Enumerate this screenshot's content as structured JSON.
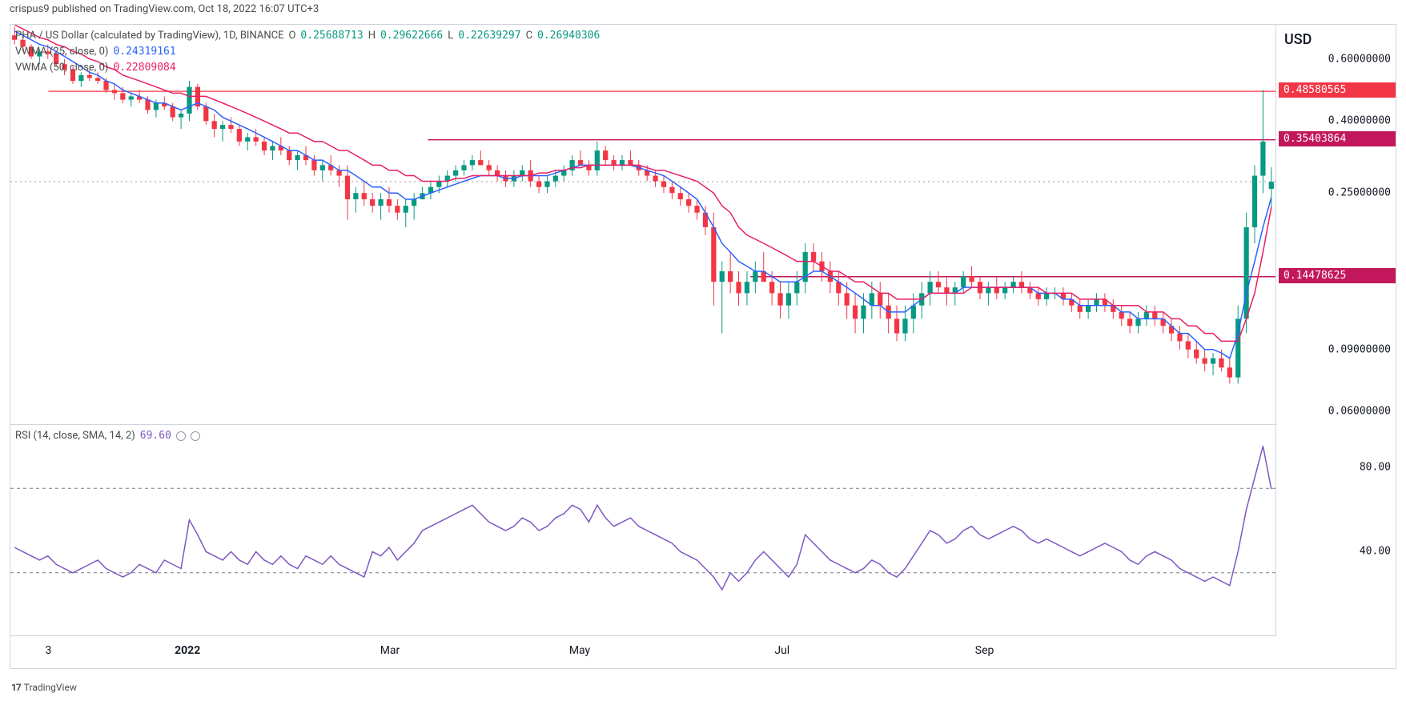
{
  "header": {
    "publisher": "crispus9",
    "site": "TradingView.com",
    "date": "Oct 18, 2022 16:07 UTC+3"
  },
  "symbol_legend": {
    "symbol": "PHA / US Dollar (calculated by TradingView), 1D, BINANCE",
    "O": "0.25688713",
    "H": "0.29622666",
    "L": "0.22639297",
    "C": "0.26940306",
    "ohlc_color": "#089981"
  },
  "vwma25": {
    "label": "VWMA (25, close, 0)",
    "value": "0.24319161",
    "color": "#2962ff"
  },
  "vwma50": {
    "label": "VWMA (50, close, 0)",
    "value": "0.22809084",
    "color": "#e91e63"
  },
  "rsi_legend": {
    "label": "RSI (14, close, SMA, 14, 2)",
    "value": "69.60",
    "color": "#7e57c2"
  },
  "yaxis": {
    "label": "USD",
    "scale": "log",
    "ticks": [
      {
        "v": 0.6,
        "label": "0.60000000"
      },
      {
        "v": 0.4,
        "label": "0.40000000"
      },
      {
        "v": 0.25,
        "label": "0.25000000"
      },
      {
        "v": 0.09,
        "label": "0.09000000"
      },
      {
        "v": 0.06,
        "label": "0.06000000"
      }
    ]
  },
  "price_lines": [
    {
      "v": 0.48580565,
      "label": "0.48580565",
      "bg": "#f23645",
      "line": "#f7525f",
      "x0pct": 3
    },
    {
      "v": 0.35403864,
      "label": "0.35403864",
      "bg": "#c2185b",
      "line": "#c2185b",
      "x0pct": 33
    },
    {
      "v": 0.14478625,
      "label": "0.14478625",
      "bg": "#c2185b",
      "line": "#c2185b",
      "x0pct": 58.5
    }
  ],
  "current_price_line": {
    "v": 0.2694,
    "color": "#9598a1"
  },
  "rsi_yaxis": {
    "ticks": [
      80,
      40
    ],
    "bands": [
      70,
      30
    ],
    "band_color": "#787b86"
  },
  "xaxis": {
    "ticks": [
      {
        "pct": 3,
        "label": "3",
        "bold": false
      },
      {
        "pct": 14,
        "label": "2022",
        "bold": true
      },
      {
        "pct": 30,
        "label": "Mar",
        "bold": false
      },
      {
        "pct": 45,
        "label": "May",
        "bold": false
      },
      {
        "pct": 61,
        "label": "Jul",
        "bold": false
      },
      {
        "pct": 77,
        "label": "Sep",
        "bold": false
      }
    ]
  },
  "footer": {
    "logo": "17",
    "text": "TradingView"
  },
  "colors": {
    "up": "#089981",
    "down": "#f23645",
    "grid": "#e0e3eb",
    "rsi_line": "#7e57c2",
    "background": "#ffffff"
  },
  "chart": {
    "y_domain_log": [
      0.055,
      0.75
    ],
    "candles": [
      [
        0.7,
        0.74,
        0.66,
        0.68
      ],
      [
        0.68,
        0.7,
        0.63,
        0.65
      ],
      [
        0.65,
        0.66,
        0.6,
        0.61
      ],
      [
        0.61,
        0.64,
        0.58,
        0.63
      ],
      [
        0.63,
        0.66,
        0.6,
        0.62
      ],
      [
        0.62,
        0.63,
        0.57,
        0.58
      ],
      [
        0.58,
        0.6,
        0.54,
        0.56
      ],
      [
        0.56,
        0.57,
        0.51,
        0.52
      ],
      [
        0.52,
        0.55,
        0.5,
        0.54
      ],
      [
        0.54,
        0.56,
        0.52,
        0.53
      ],
      [
        0.53,
        0.55,
        0.51,
        0.52
      ],
      [
        0.52,
        0.53,
        0.48,
        0.49
      ],
      [
        0.49,
        0.51,
        0.46,
        0.48
      ],
      [
        0.48,
        0.5,
        0.45,
        0.46
      ],
      [
        0.46,
        0.48,
        0.44,
        0.47
      ],
      [
        0.47,
        0.49,
        0.45,
        0.46
      ],
      [
        0.46,
        0.47,
        0.42,
        0.43
      ],
      [
        0.43,
        0.46,
        0.41,
        0.45
      ],
      [
        0.45,
        0.47,
        0.43,
        0.44
      ],
      [
        0.44,
        0.45,
        0.4,
        0.41
      ],
      [
        0.41,
        0.43,
        0.38,
        0.42
      ],
      [
        0.42,
        0.52,
        0.4,
        0.5
      ],
      [
        0.5,
        0.51,
        0.43,
        0.44
      ],
      [
        0.44,
        0.45,
        0.39,
        0.4
      ],
      [
        0.4,
        0.42,
        0.36,
        0.38
      ],
      [
        0.38,
        0.4,
        0.35,
        0.39
      ],
      [
        0.39,
        0.41,
        0.37,
        0.38
      ],
      [
        0.38,
        0.39,
        0.34,
        0.35
      ],
      [
        0.35,
        0.37,
        0.33,
        0.36
      ],
      [
        0.36,
        0.38,
        0.34,
        0.35
      ],
      [
        0.35,
        0.36,
        0.32,
        0.33
      ],
      [
        0.33,
        0.35,
        0.31,
        0.34
      ],
      [
        0.34,
        0.36,
        0.32,
        0.33
      ],
      [
        0.33,
        0.34,
        0.3,
        0.31
      ],
      [
        0.31,
        0.33,
        0.29,
        0.32
      ],
      [
        0.32,
        0.34,
        0.3,
        0.31
      ],
      [
        0.31,
        0.32,
        0.28,
        0.29
      ],
      [
        0.29,
        0.31,
        0.27,
        0.3
      ],
      [
        0.3,
        0.32,
        0.28,
        0.29
      ],
      [
        0.29,
        0.3,
        0.26,
        0.28
      ],
      [
        0.28,
        0.3,
        0.21,
        0.24
      ],
      [
        0.24,
        0.26,
        0.22,
        0.25
      ],
      [
        0.25,
        0.27,
        0.23,
        0.24
      ],
      [
        0.24,
        0.25,
        0.22,
        0.23
      ],
      [
        0.23,
        0.25,
        0.21,
        0.24
      ],
      [
        0.24,
        0.26,
        0.22,
        0.23
      ],
      [
        0.23,
        0.24,
        0.21,
        0.22
      ],
      [
        0.22,
        0.24,
        0.2,
        0.23
      ],
      [
        0.23,
        0.25,
        0.21,
        0.24
      ],
      [
        0.24,
        0.26,
        0.24,
        0.25
      ],
      [
        0.25,
        0.27,
        0.24,
        0.26
      ],
      [
        0.26,
        0.28,
        0.25,
        0.27
      ],
      [
        0.27,
        0.29,
        0.26,
        0.28
      ],
      [
        0.28,
        0.3,
        0.27,
        0.29
      ],
      [
        0.29,
        0.31,
        0.28,
        0.3
      ],
      [
        0.3,
        0.32,
        0.29,
        0.31
      ],
      [
        0.31,
        0.33,
        0.3,
        0.3
      ],
      [
        0.3,
        0.31,
        0.28,
        0.29
      ],
      [
        0.29,
        0.3,
        0.27,
        0.28
      ],
      [
        0.28,
        0.29,
        0.26,
        0.27
      ],
      [
        0.27,
        0.29,
        0.26,
        0.28
      ],
      [
        0.28,
        0.3,
        0.27,
        0.29
      ],
      [
        0.29,
        0.31,
        0.26,
        0.27
      ],
      [
        0.27,
        0.28,
        0.25,
        0.26
      ],
      [
        0.26,
        0.28,
        0.25,
        0.27
      ],
      [
        0.27,
        0.29,
        0.26,
        0.28
      ],
      [
        0.28,
        0.3,
        0.27,
        0.29
      ],
      [
        0.29,
        0.32,
        0.28,
        0.31
      ],
      [
        0.31,
        0.33,
        0.3,
        0.3
      ],
      [
        0.3,
        0.31,
        0.28,
        0.29
      ],
      [
        0.29,
        0.35,
        0.28,
        0.33
      ],
      [
        0.33,
        0.34,
        0.3,
        0.31
      ],
      [
        0.31,
        0.32,
        0.29,
        0.3
      ],
      [
        0.3,
        0.32,
        0.29,
        0.31
      ],
      [
        0.31,
        0.33,
        0.3,
        0.3
      ],
      [
        0.3,
        0.31,
        0.28,
        0.29
      ],
      [
        0.29,
        0.3,
        0.27,
        0.28
      ],
      [
        0.28,
        0.29,
        0.26,
        0.27
      ],
      [
        0.27,
        0.28,
        0.25,
        0.26
      ],
      [
        0.26,
        0.27,
        0.24,
        0.25
      ],
      [
        0.25,
        0.26,
        0.23,
        0.24
      ],
      [
        0.24,
        0.25,
        0.22,
        0.23
      ],
      [
        0.23,
        0.24,
        0.21,
        0.22
      ],
      [
        0.22,
        0.23,
        0.19,
        0.2
      ],
      [
        0.2,
        0.22,
        0.12,
        0.14
      ],
      [
        0.14,
        0.16,
        0.1,
        0.15
      ],
      [
        0.15,
        0.17,
        0.13,
        0.14
      ],
      [
        0.14,
        0.15,
        0.12,
        0.13
      ],
      [
        0.13,
        0.15,
        0.12,
        0.14
      ],
      [
        0.14,
        0.16,
        0.13,
        0.15
      ],
      [
        0.15,
        0.17,
        0.14,
        0.14
      ],
      [
        0.14,
        0.15,
        0.12,
        0.13
      ],
      [
        0.13,
        0.14,
        0.11,
        0.12
      ],
      [
        0.12,
        0.14,
        0.11,
        0.13
      ],
      [
        0.13,
        0.15,
        0.12,
        0.14
      ],
      [
        0.14,
        0.18,
        0.13,
        0.17
      ],
      [
        0.17,
        0.18,
        0.15,
        0.16
      ],
      [
        0.16,
        0.17,
        0.14,
        0.15
      ],
      [
        0.15,
        0.16,
        0.13,
        0.14
      ],
      [
        0.14,
        0.15,
        0.12,
        0.13
      ],
      [
        0.13,
        0.14,
        0.11,
        0.12
      ],
      [
        0.12,
        0.13,
        0.1,
        0.11
      ],
      [
        0.11,
        0.13,
        0.1,
        0.12
      ],
      [
        0.12,
        0.14,
        0.11,
        0.13
      ],
      [
        0.13,
        0.14,
        0.11,
        0.12
      ],
      [
        0.12,
        0.13,
        0.1,
        0.11
      ],
      [
        0.11,
        0.12,
        0.095,
        0.1
      ],
      [
        0.1,
        0.12,
        0.095,
        0.11
      ],
      [
        0.11,
        0.13,
        0.1,
        0.12
      ],
      [
        0.12,
        0.14,
        0.11,
        0.13
      ],
      [
        0.13,
        0.15,
        0.12,
        0.14
      ],
      [
        0.14,
        0.15,
        0.13,
        0.135
      ],
      [
        0.135,
        0.145,
        0.12,
        0.13
      ],
      [
        0.13,
        0.14,
        0.12,
        0.135
      ],
      [
        0.135,
        0.15,
        0.13,
        0.145
      ],
      [
        0.145,
        0.155,
        0.135,
        0.14
      ],
      [
        0.14,
        0.145,
        0.125,
        0.13
      ],
      [
        0.13,
        0.14,
        0.12,
        0.135
      ],
      [
        0.135,
        0.145,
        0.125,
        0.13
      ],
      [
        0.13,
        0.14,
        0.125,
        0.135
      ],
      [
        0.135,
        0.145,
        0.13,
        0.14
      ],
      [
        0.14,
        0.15,
        0.13,
        0.135
      ],
      [
        0.135,
        0.14,
        0.125,
        0.13
      ],
      [
        0.13,
        0.135,
        0.12,
        0.125
      ],
      [
        0.125,
        0.135,
        0.12,
        0.13
      ],
      [
        0.13,
        0.135,
        0.125,
        0.13
      ],
      [
        0.13,
        0.135,
        0.12,
        0.125
      ],
      [
        0.125,
        0.13,
        0.115,
        0.12
      ],
      [
        0.12,
        0.125,
        0.11,
        0.115
      ],
      [
        0.115,
        0.125,
        0.11,
        0.12
      ],
      [
        0.12,
        0.13,
        0.115,
        0.125
      ],
      [
        0.125,
        0.13,
        0.115,
        0.12
      ],
      [
        0.12,
        0.125,
        0.11,
        0.115
      ],
      [
        0.115,
        0.12,
        0.105,
        0.11
      ],
      [
        0.11,
        0.115,
        0.1,
        0.105
      ],
      [
        0.105,
        0.115,
        0.1,
        0.11
      ],
      [
        0.11,
        0.12,
        0.105,
        0.115
      ],
      [
        0.115,
        0.12,
        0.105,
        0.11
      ],
      [
        0.11,
        0.115,
        0.1,
        0.105
      ],
      [
        0.105,
        0.11,
        0.095,
        0.1
      ],
      [
        0.1,
        0.105,
        0.09,
        0.095
      ],
      [
        0.095,
        0.1,
        0.085,
        0.09
      ],
      [
        0.09,
        0.095,
        0.082,
        0.085
      ],
      [
        0.085,
        0.09,
        0.078,
        0.082
      ],
      [
        0.082,
        0.088,
        0.076,
        0.085
      ],
      [
        0.085,
        0.09,
        0.078,
        0.08
      ],
      [
        0.08,
        0.085,
        0.072,
        0.075
      ],
      [
        0.075,
        0.12,
        0.072,
        0.11
      ],
      [
        0.11,
        0.22,
        0.1,
        0.2
      ],
      [
        0.2,
        0.3,
        0.18,
        0.28
      ],
      [
        0.28,
        0.49,
        0.25,
        0.35
      ],
      [
        0.257,
        0.296,
        0.226,
        0.269
      ]
    ],
    "vwma25_pts": [
      0.72,
      0.7,
      0.68,
      0.66,
      0.65,
      0.63,
      0.61,
      0.59,
      0.57,
      0.55,
      0.54,
      0.52,
      0.51,
      0.49,
      0.48,
      0.47,
      0.46,
      0.45,
      0.45,
      0.44,
      0.43,
      0.44,
      0.45,
      0.44,
      0.43,
      0.41,
      0.4,
      0.39,
      0.38,
      0.37,
      0.36,
      0.35,
      0.34,
      0.33,
      0.33,
      0.32,
      0.31,
      0.31,
      0.3,
      0.29,
      0.29,
      0.28,
      0.27,
      0.26,
      0.26,
      0.25,
      0.25,
      0.24,
      0.24,
      0.245,
      0.25,
      0.255,
      0.26,
      0.265,
      0.27,
      0.275,
      0.28,
      0.28,
      0.28,
      0.275,
      0.275,
      0.28,
      0.28,
      0.28,
      0.28,
      0.285,
      0.29,
      0.295,
      0.3,
      0.3,
      0.3,
      0.3,
      0.3,
      0.3,
      0.3,
      0.295,
      0.29,
      0.285,
      0.28,
      0.27,
      0.26,
      0.25,
      0.24,
      0.22,
      0.2,
      0.18,
      0.17,
      0.16,
      0.155,
      0.15,
      0.15,
      0.145,
      0.14,
      0.14,
      0.14,
      0.145,
      0.15,
      0.15,
      0.145,
      0.14,
      0.135,
      0.13,
      0.125,
      0.12,
      0.12,
      0.115,
      0.115,
      0.115,
      0.12,
      0.125,
      0.13,
      0.13,
      0.13,
      0.13,
      0.135,
      0.135,
      0.135,
      0.135,
      0.135,
      0.135,
      0.135,
      0.135,
      0.135,
      0.13,
      0.13,
      0.13,
      0.125,
      0.125,
      0.12,
      0.12,
      0.12,
      0.12,
      0.12,
      0.115,
      0.115,
      0.11,
      0.11,
      0.11,
      0.11,
      0.105,
      0.1,
      0.1,
      0.095,
      0.09,
      0.09,
      0.088,
      0.085,
      0.1,
      0.13,
      0.16,
      0.2,
      0.243
    ],
    "vwma50_pts": [
      0.75,
      0.73,
      0.71,
      0.69,
      0.68,
      0.66,
      0.65,
      0.63,
      0.62,
      0.6,
      0.59,
      0.57,
      0.56,
      0.54,
      0.53,
      0.52,
      0.51,
      0.5,
      0.49,
      0.48,
      0.48,
      0.47,
      0.47,
      0.47,
      0.46,
      0.45,
      0.44,
      0.43,
      0.42,
      0.41,
      0.4,
      0.39,
      0.38,
      0.37,
      0.37,
      0.36,
      0.35,
      0.35,
      0.34,
      0.33,
      0.33,
      0.32,
      0.31,
      0.3,
      0.3,
      0.29,
      0.29,
      0.28,
      0.28,
      0.27,
      0.27,
      0.27,
      0.27,
      0.275,
      0.275,
      0.28,
      0.28,
      0.28,
      0.28,
      0.28,
      0.28,
      0.28,
      0.28,
      0.285,
      0.285,
      0.29,
      0.29,
      0.295,
      0.295,
      0.3,
      0.3,
      0.3,
      0.3,
      0.3,
      0.3,
      0.3,
      0.295,
      0.29,
      0.29,
      0.285,
      0.28,
      0.275,
      0.27,
      0.26,
      0.25,
      0.23,
      0.22,
      0.2,
      0.19,
      0.185,
      0.18,
      0.175,
      0.17,
      0.165,
      0.16,
      0.16,
      0.16,
      0.155,
      0.15,
      0.15,
      0.145,
      0.14,
      0.14,
      0.135,
      0.13,
      0.13,
      0.125,
      0.125,
      0.125,
      0.125,
      0.13,
      0.13,
      0.13,
      0.13,
      0.13,
      0.135,
      0.135,
      0.135,
      0.135,
      0.135,
      0.135,
      0.135,
      0.135,
      0.135,
      0.13,
      0.13,
      0.13,
      0.13,
      0.125,
      0.125,
      0.125,
      0.125,
      0.12,
      0.12,
      0.12,
      0.12,
      0.115,
      0.115,
      0.115,
      0.11,
      0.11,
      0.105,
      0.105,
      0.1,
      0.1,
      0.095,
      0.095,
      0.095,
      0.11,
      0.13,
      0.17,
      0.228
    ],
    "rsi_pts": [
      42,
      40,
      38,
      36,
      38,
      34,
      32,
      30,
      32,
      34,
      36,
      32,
      30,
      28,
      30,
      34,
      32,
      30,
      36,
      34,
      32,
      55,
      48,
      40,
      38,
      36,
      40,
      36,
      34,
      40,
      36,
      34,
      38,
      34,
      32,
      38,
      36,
      34,
      38,
      34,
      32,
      30,
      28,
      40,
      38,
      42,
      36,
      40,
      44,
      50,
      52,
      54,
      56,
      58,
      60,
      62,
      58,
      54,
      52,
      50,
      52,
      56,
      54,
      50,
      52,
      56,
      58,
      62,
      60,
      54,
      62,
      56,
      52,
      54,
      56,
      52,
      50,
      48,
      46,
      44,
      40,
      38,
      36,
      32,
      28,
      22,
      30,
      26,
      30,
      36,
      40,
      36,
      32,
      28,
      34,
      48,
      44,
      40,
      36,
      34,
      32,
      30,
      32,
      36,
      34,
      30,
      28,
      32,
      38,
      44,
      50,
      48,
      44,
      46,
      50,
      52,
      48,
      46,
      48,
      50,
      52,
      50,
      46,
      44,
      46,
      44,
      42,
      40,
      38,
      40,
      42,
      44,
      42,
      40,
      36,
      34,
      38,
      40,
      38,
      36,
      32,
      30,
      28,
      26,
      28,
      26,
      24,
      40,
      60,
      75,
      90,
      69.6
    ]
  }
}
